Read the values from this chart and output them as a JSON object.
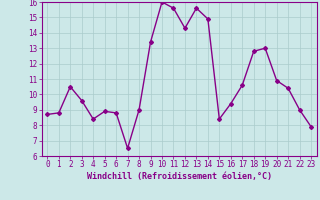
{
  "x": [
    0,
    1,
    2,
    3,
    4,
    5,
    6,
    7,
    8,
    9,
    10,
    11,
    12,
    13,
    14,
    15,
    16,
    17,
    18,
    19,
    20,
    21,
    22,
    23
  ],
  "y": [
    8.7,
    8.8,
    10.5,
    9.6,
    8.4,
    8.9,
    8.8,
    6.5,
    9.0,
    13.4,
    16.0,
    15.6,
    14.3,
    15.6,
    14.9,
    8.4,
    9.4,
    10.6,
    12.8,
    13.0,
    10.9,
    10.4,
    9.0,
    7.9
  ],
  "line_color": "#880088",
  "marker": "D",
  "marker_size": 2.0,
  "line_width": 1.0,
  "bg_color": "#cce8e8",
  "grid_color": "#aacccc",
  "xlabel": "Windchill (Refroidissement éolien,°C)",
  "xlabel_fontsize": 6.0,
  "tick_fontsize": 5.5,
  "ylim": [
    6,
    16
  ],
  "xlim": [
    -0.5,
    23.5
  ],
  "yticks": [
    6,
    7,
    8,
    9,
    10,
    11,
    12,
    13,
    14,
    15,
    16
  ],
  "xticks": [
    0,
    1,
    2,
    3,
    4,
    5,
    6,
    7,
    8,
    9,
    10,
    11,
    12,
    13,
    14,
    15,
    16,
    17,
    18,
    19,
    20,
    21,
    22,
    23
  ]
}
